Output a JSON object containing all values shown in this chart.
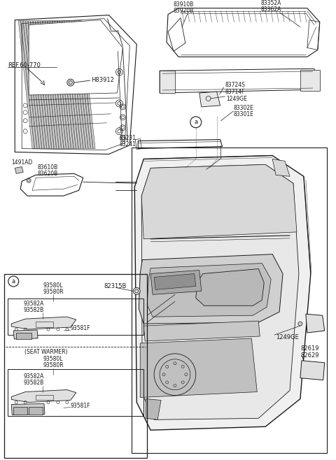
{
  "bg": "#ffffff",
  "lc": "#1a1a1a",
  "fig_w": 4.8,
  "fig_h": 6.58,
  "dpi": 100,
  "fs": 5.5,
  "fn": 6.0,
  "labels": {
    "ref": "REF.60-770",
    "h83912": "H83912",
    "l83910B": "83910B",
    "l83920B": "83920B",
    "l83352A": "83352A",
    "l83362A": "83362A",
    "l83724S": "83724S",
    "l83714F": "83714F",
    "l1249GE_t": "1249GE",
    "l83302E": "83302E",
    "l83301E": "83301E",
    "l83231": "83231",
    "l83241": "83241",
    "l1491AD": "1491AD",
    "l83610B": "83610B",
    "l83620B": "83620B",
    "l82315B": "82315B",
    "l1249GE_b": "1249GE",
    "l82619": "82619",
    "l82629": "82629",
    "a": "a",
    "sw": "(SEAT WARMER)",
    "s93580L_1": "93580L",
    "s93580R_1": "93580R",
    "s93582A_1": "93582A",
    "s93582B_1": "93582B",
    "s93581F_1": "93581F",
    "s93580L_2": "93580L",
    "s93580R_2": "93580R",
    "s93582A_2": "93582A",
    "s93582B_2": "93582B",
    "s93581F_2": "93581F"
  }
}
